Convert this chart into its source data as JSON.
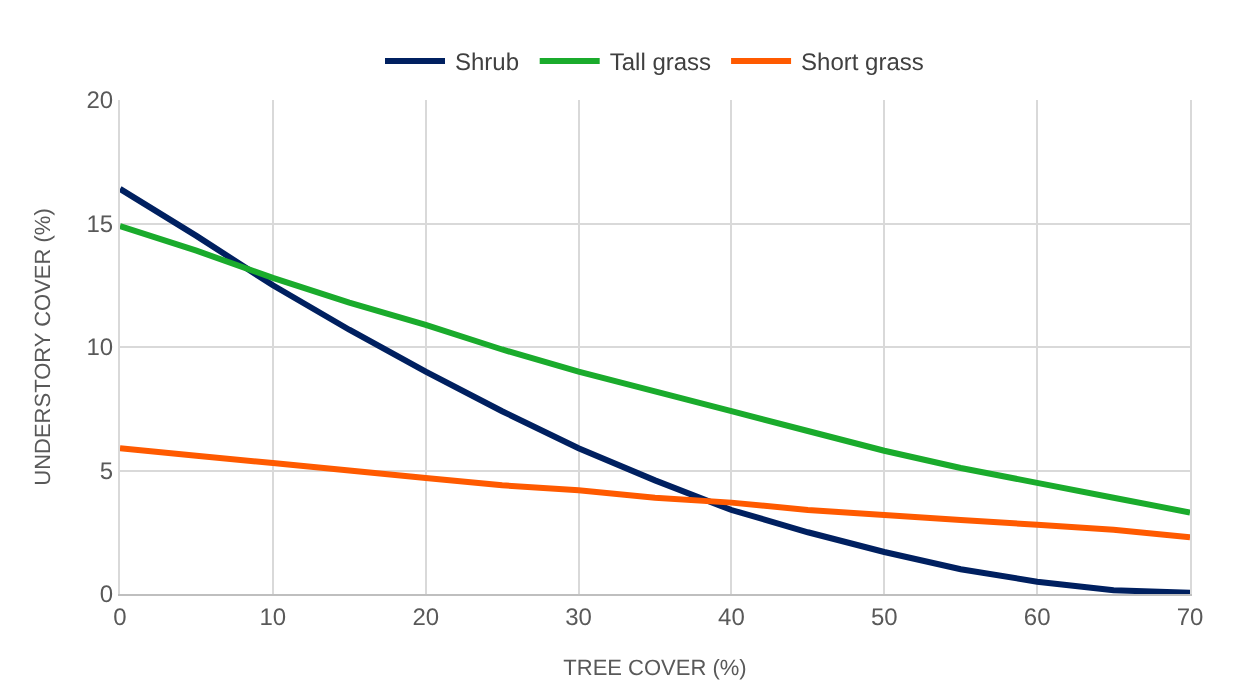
{
  "chart_data": {
    "type": "line",
    "xlabel": "TREE COVER (%)",
    "ylabel": "UNDERSTORY COVER (%)",
    "x": [
      0,
      5,
      10,
      15,
      20,
      25,
      30,
      35,
      40,
      45,
      50,
      55,
      60,
      65,
      70
    ],
    "series": [
      {
        "name": "Shrub",
        "color": "#002060",
        "values": [
          16.4,
          14.5,
          12.5,
          10.7,
          9.0,
          7.4,
          5.9,
          4.6,
          3.4,
          2.5,
          1.7,
          1.0,
          0.5,
          0.15,
          0.05
        ]
      },
      {
        "name": "Tall grass",
        "color": "#1aab2c",
        "values": [
          14.9,
          13.9,
          12.8,
          11.8,
          10.9,
          9.9,
          9.0,
          8.2,
          7.4,
          6.6,
          5.8,
          5.1,
          4.5,
          3.9,
          3.3
        ]
      },
      {
        "name": "Short grass",
        "color": "#ff5a00",
        "values": [
          5.9,
          5.6,
          5.3,
          5.0,
          4.7,
          4.4,
          4.2,
          3.9,
          3.7,
          3.4,
          3.2,
          3.0,
          2.8,
          2.6,
          2.3
        ]
      }
    ],
    "xlim": [
      0,
      70
    ],
    "xticks": [
      0,
      10,
      20,
      30,
      40,
      50,
      60,
      70
    ],
    "ylim": [
      0,
      20
    ],
    "yticks": [
      0,
      5,
      10,
      15,
      20
    ],
    "grid": true,
    "legend": "top",
    "marker": "none",
    "line_style": "solid"
  }
}
